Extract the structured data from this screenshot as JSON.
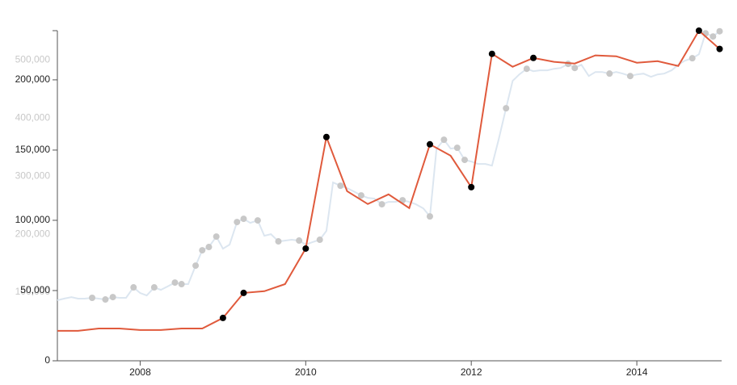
{
  "chart_data": {
    "type": "line",
    "xlim": [
      2007,
      2015
    ],
    "xticks": [
      2008,
      2010,
      2012,
      2014
    ],
    "ylim": [
      0,
      235000
    ],
    "yticks": [
      0,
      {
        "value": 50000,
        "label": "50,000"
      },
      {
        "value": 100000,
        "label": "100,000"
      },
      {
        "value": 150000,
        "label": "150,000"
      },
      {
        "value": 200000,
        "label": "200,000"
      }
    ],
    "y2lim": [
      0,
      567000
    ],
    "y2ticks": [
      {
        "value": 100000,
        "label": "100,000"
      },
      {
        "value": 200000,
        "label": "200,000"
      },
      {
        "value": 300000,
        "label": "300,000"
      },
      {
        "value": 400000,
        "label": "400,000"
      },
      {
        "value": 500000,
        "label": "500,000"
      }
    ],
    "grid": false,
    "series": [
      {
        "axis": "y2",
        "color": "#dce6f0",
        "marker_color": "#c8c8c8",
        "x": [
          2007,
          2007.08,
          2007.17,
          2007.25,
          2007.33,
          2007.42,
          2007.5,
          2007.58,
          2007.67,
          2007.75,
          2007.83,
          2007.92,
          2008,
          2008.08,
          2008.17,
          2008.25,
          2008.33,
          2008.42,
          2008.5,
          2008.58,
          2008.67,
          2008.75,
          2008.83,
          2008.92,
          2009,
          2009.08,
          2009.17,
          2009.25,
          2009.33,
          2009.42,
          2009.5,
          2009.58,
          2009.67,
          2009.75,
          2009.83,
          2009.92,
          2010,
          2010.08,
          2010.17,
          2010.25,
          2010.33,
          2010.42,
          2010.5,
          2010.58,
          2010.67,
          2010.75,
          2010.83,
          2010.92,
          2011,
          2011.08,
          2011.17,
          2011.25,
          2011.33,
          2011.42,
          2011.5,
          2011.58,
          2011.67,
          2011.75,
          2011.83,
          2011.92,
          2012,
          2012.08,
          2012.17,
          2012.25,
          2012.33,
          2012.42,
          2012.5,
          2012.58,
          2012.67,
          2012.75,
          2012.83,
          2012.92,
          2013,
          2013.08,
          2013.17,
          2013.25,
          2013.33,
          2013.42,
          2013.5,
          2013.58,
          2013.67,
          2013.75,
          2013.83,
          2013.92,
          2014,
          2014.08,
          2014.17,
          2014.25,
          2014.33,
          2014.42,
          2014.5,
          2014.58,
          2014.67,
          2014.75,
          2014.83,
          2014.92,
          2015
        ],
        "values": [
          102800,
          105600,
          108300,
          105600,
          105600,
          107000,
          105600,
          104200,
          108300,
          107000,
          107000,
          125000,
          115300,
          111100,
          125000,
          120800,
          126400,
          133300,
          130600,
          130600,
          162500,
          188900,
          194500,
          212500,
          191700,
          198600,
          237500,
          243100,
          236100,
          240300,
          213900,
          216700,
          204200,
          205600,
          207000,
          205600,
          198600,
          202800,
          207000,
          222200,
          305600,
          300000,
          295900,
          290300,
          283400,
          279200,
          277800,
          268100,
          272200,
          272200,
          275000,
          272200,
          268100,
          261100,
          247200,
          363900,
          379200,
          363900,
          365300,
          344500,
          341700,
          337500,
          337500,
          334700,
          379200,
          433400,
          480600,
          491700,
          501400,
          497300,
          498700,
          498700,
          501400,
          502800,
          509800,
          502800,
          508400,
          488900,
          495900,
          495900,
          493100,
          495900,
          493100,
          488900,
          491700,
          493100,
          487500,
          491700,
          493100,
          498700,
          508400,
          515300,
          519500,
          526400,
          562500,
          557000,
          566000
        ],
        "marker_indices": [
          5,
          7,
          8,
          11,
          14,
          17,
          18,
          20,
          21,
          22,
          23,
          26,
          27,
          29,
          32,
          35,
          38,
          41,
          44,
          47,
          50,
          54,
          56,
          58,
          59,
          65,
          68,
          74,
          75,
          80,
          83,
          92,
          94,
          95,
          96
        ]
      },
      {
        "axis": "y",
        "color": "#e05a3c",
        "marker_color": "#000000",
        "x": [
          2007,
          2007.25,
          2007.5,
          2007.75,
          2008,
          2008.25,
          2008.5,
          2008.75,
          2009,
          2009.25,
          2009.5,
          2009.75,
          2010,
          2010.25,
          2010.5,
          2010.75,
          2011,
          2011.25,
          2011.5,
          2011.75,
          2012,
          2012.25,
          2012.5,
          2012.75,
          2013,
          2013.25,
          2013.5,
          2013.75,
          2014,
          2014.25,
          2014.5,
          2014.75,
          2015
        ],
        "values": [
          21300,
          21300,
          23000,
          23000,
          21900,
          21900,
          23000,
          23000,
          30500,
          48300,
          49500,
          54600,
          79900,
          159300,
          120800,
          111600,
          118500,
          108700,
          154100,
          146000,
          123600,
          218500,
          209300,
          215600,
          212800,
          211600,
          217400,
          216800,
          212200,
          213300,
          209900,
          235000,
          222000
        ],
        "marker_indices": [
          8,
          9,
          12,
          13,
          18,
          20,
          21,
          23,
          31,
          32
        ]
      }
    ]
  }
}
